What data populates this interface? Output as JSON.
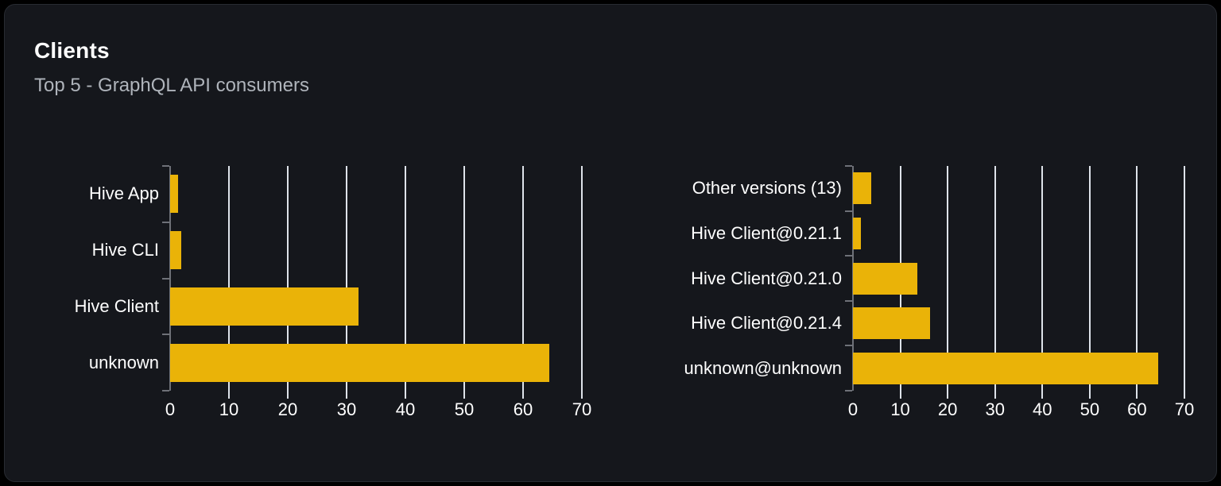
{
  "card": {
    "title": "Clients",
    "subtitle": "Top 5 - GraphQL API consumers"
  },
  "colors": {
    "page_bg": "#000000",
    "card_bg": "#15171c",
    "card_border": "#282b32",
    "bar": "#eab308",
    "gridline": "#dee3ea",
    "axis": "#6e7178",
    "text": "#ffffff",
    "subtitle_text": "#afb4bb"
  },
  "chart_data": [
    {
      "type": "bar",
      "orientation": "horizontal",
      "categories": [
        "Hive App",
        "Hive CLI",
        "Hive Client",
        "unknown"
      ],
      "values": [
        1.4,
        1.9,
        32,
        64.5
      ],
      "xlim": [
        0,
        70
      ],
      "x_ticks": [
        0,
        10,
        20,
        30,
        40,
        50,
        60,
        70
      ],
      "grid": true,
      "legend": false
    },
    {
      "type": "bar",
      "orientation": "horizontal",
      "categories": [
        "Other versions (13)",
        "Hive Client@0.21.1",
        "Hive Client@0.21.0",
        "Hive Client@0.21.4",
        "unknown@unknown"
      ],
      "values": [
        3.8,
        1.7,
        13.6,
        16.2,
        64.5
      ],
      "xlim": [
        0,
        70
      ],
      "x_ticks": [
        0,
        10,
        20,
        30,
        40,
        50,
        60,
        70
      ],
      "grid": true,
      "legend": false
    }
  ]
}
